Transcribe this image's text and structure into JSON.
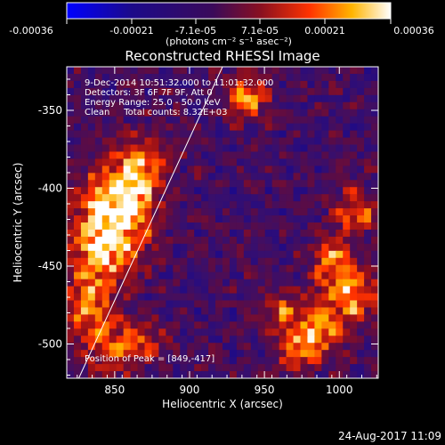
{
  "colorbar": {
    "ticks": [
      "-0.00036",
      "-0.00021",
      "-7.1e-05",
      "7.1e-05",
      "0.00021",
      "0.00036"
    ],
    "unit_label": "(photons cm⁻² s⁻¹ asec⁻²)",
    "range": [
      -0.00036,
      0.00036
    ]
  },
  "chart_data": {
    "type": "heatmap",
    "title": "Reconstructed RHESSI Image",
    "xlabel": "Heliocentric X (arcsec)",
    "ylabel": "Heliocentric Y (arcsec)",
    "xlim": [
      818,
      1026
    ],
    "ylim": [
      -522,
      -322
    ],
    "x_ticks": [
      850,
      900,
      950,
      1000
    ],
    "y_ticks": [
      -350,
      -400,
      -450,
      -500
    ],
    "grid": false,
    "annotations": [
      "9-Dec-2014 10:51:32.000 to 11:01:32.000",
      "Detectors: 3F 6F 7F 9F, Att 0",
      "Energy Range: 25.0 - 50.0 keV",
      "Clean     Total counts: 8.32E+03"
    ],
    "peak_label": "Position of Peak = [849,-417]",
    "peak": [
      849,
      -417
    ],
    "limb_line": [
      [
        826,
        -522
      ],
      [
        922,
        -322
      ]
    ],
    "sources": [
      {
        "x": 851,
        "y": -410,
        "sigma": 18,
        "amp": 1.0
      },
      {
        "x": 842,
        "y": -440,
        "sigma": 16,
        "amp": 0.7
      },
      {
        "x": 868,
        "y": -385,
        "sigma": 12,
        "amp": 0.55
      },
      {
        "x": 832,
        "y": -475,
        "sigma": 14,
        "amp": 0.6
      },
      {
        "x": 845,
        "y": -505,
        "sigma": 12,
        "amp": 0.55
      },
      {
        "x": 870,
        "y": -498,
        "sigma": 10,
        "amp": 0.45
      },
      {
        "x": 938,
        "y": -342,
        "sigma": 10,
        "amp": 0.7
      },
      {
        "x": 1012,
        "y": -415,
        "sigma": 10,
        "amp": 0.7
      },
      {
        "x": 995,
        "y": -445,
        "sigma": 10,
        "amp": 0.6
      },
      {
        "x": 1008,
        "y": -468,
        "sigma": 12,
        "amp": 0.8
      },
      {
        "x": 985,
        "y": -490,
        "sigma": 12,
        "amp": 0.65
      },
      {
        "x": 962,
        "y": -478,
        "sigma": 9,
        "amp": 0.5
      },
      {
        "x": 972,
        "y": -505,
        "sigma": 10,
        "amp": 0.5
      }
    ]
  },
  "footer": {
    "date": "24-Aug-2017 11:09"
  }
}
